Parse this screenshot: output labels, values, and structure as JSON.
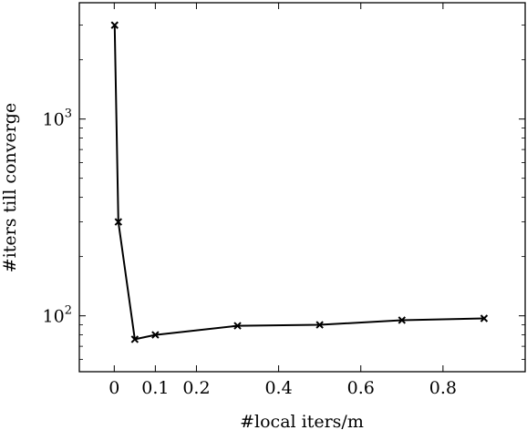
{
  "chart_data": {
    "type": "line",
    "title": "",
    "xlabel": "#local iters/m",
    "ylabel": "#iters till converge",
    "xscale": "linear",
    "yscale": "log",
    "xlim": [
      -0.085,
      1.0
    ],
    "ylim": [
      52,
      3900
    ],
    "grid": false,
    "legend": "none",
    "x_ticks": [
      {
        "value": 0,
        "label": "0"
      },
      {
        "value": 0.1,
        "label": "0.1"
      },
      {
        "value": 0.2,
        "label": "0.2"
      },
      {
        "value": 0.4,
        "label": "0.4"
      },
      {
        "value": 0.6,
        "label": "0.6"
      },
      {
        "value": 0.8,
        "label": "0.8"
      }
    ],
    "y_major_ticks": [
      {
        "value": 100,
        "base": "10",
        "exp": "2"
      },
      {
        "value": 1000,
        "base": "10",
        "exp": "3"
      }
    ],
    "y_minor_ticks": [
      60,
      70,
      80,
      90,
      200,
      300,
      400,
      500,
      600,
      700,
      800,
      900,
      2000,
      3000
    ],
    "series": [
      {
        "marker": "x",
        "color": "#000000",
        "x": [
          0.001,
          0.01,
          0.05,
          0.1,
          0.3,
          0.5,
          0.7,
          0.9
        ],
        "y": [
          3000,
          300,
          76,
          80,
          89,
          90,
          95,
          97
        ]
      }
    ]
  }
}
